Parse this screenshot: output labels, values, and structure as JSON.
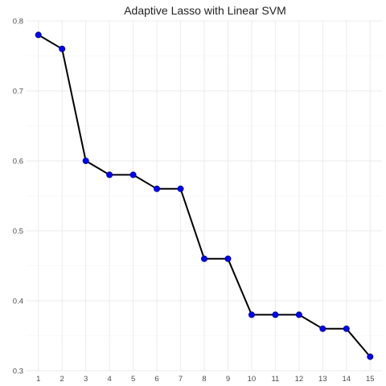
{
  "chart_data": {
    "type": "line",
    "title": "Adaptive Lasso with Linear SVM",
    "xlabel": "",
    "ylabel": "",
    "x": [
      1,
      2,
      3,
      4,
      5,
      6,
      7,
      8,
      9,
      10,
      11,
      12,
      13,
      14,
      15
    ],
    "series": [
      {
        "values": [
          0.78,
          0.76,
          0.6,
          0.58,
          0.58,
          0.56,
          0.56,
          0.46,
          0.46,
          0.38,
          0.38,
          0.38,
          0.36,
          0.36,
          0.32
        ]
      }
    ],
    "xticks": [
      "1",
      "2",
      "3",
      "4",
      "5",
      "6",
      "7",
      "8",
      "9",
      "10",
      "11",
      "12",
      "13",
      "14",
      "15"
    ],
    "yticks": [
      "0.3",
      "0.4",
      "0.5",
      "0.6",
      "0.7",
      "0.8"
    ],
    "xlim": [
      0.5,
      15.5
    ],
    "ylim": [
      0.3,
      0.8
    ],
    "grid": true,
    "legend": "none",
    "colors": {
      "line": "#000000",
      "point": "#0000ff",
      "point_outline": "#00008b",
      "grid": "#ebebeb"
    }
  }
}
